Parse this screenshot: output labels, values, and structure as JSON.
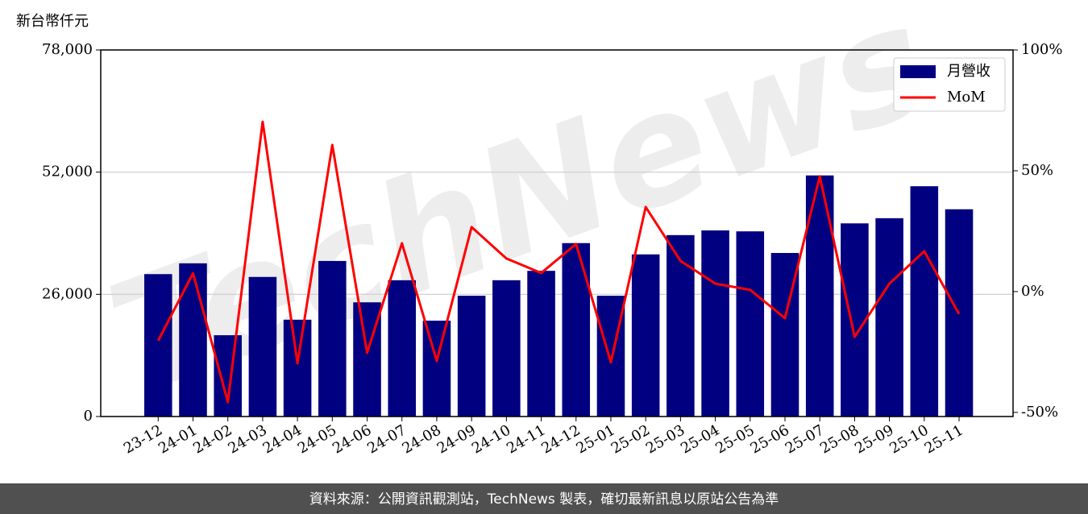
{
  "chart_data": {
    "type": "bar",
    "y_label": "新台幣仟元",
    "watermark": "TechNews",
    "categories": [
      "23-12",
      "24-01",
      "24-02",
      "24-03",
      "24-04",
      "24-05",
      "24-06",
      "24-07",
      "24-08",
      "24-09",
      "24-10",
      "24-11",
      "24-12",
      "25-01",
      "25-02",
      "25-03",
      "25-04",
      "25-05",
      "25-06",
      "25-07",
      "25-08",
      "25-09",
      "25-10",
      "25-11"
    ],
    "series": [
      {
        "name": "月營收",
        "type": "bar",
        "color": "#000080",
        "values": [
          30300,
          32600,
          17300,
          29700,
          20600,
          33100,
          24300,
          29000,
          20400,
          25700,
          29000,
          31000,
          36900,
          25700,
          34500,
          38600,
          39600,
          39400,
          34800,
          51300,
          41100,
          42200,
          49000,
          44100
        ]
      },
      {
        "name": "MoM",
        "type": "line",
        "axis": "y2",
        "color": "#ff0000",
        "values": [
          -20.3,
          7.6,
          -45.7,
          70.3,
          -29.7,
          60.7,
          -25.3,
          20,
          -28.7,
          26.7,
          13.7,
          7.7,
          19.7,
          -29.3,
          35,
          12.7,
          3.3,
          0.7,
          -11,
          47.7,
          -18.7,
          3.3,
          16.7,
          -9.3
        ]
      }
    ],
    "ylim": [
      0,
      78000
    ],
    "yticks": [
      0,
      {
        "value": 26000,
        "label": "26,000"
      },
      {
        "value": 52000,
        "label": "52,000"
      },
      {
        "value": 78000,
        "label": "78,000"
      }
    ],
    "y2lim": [
      -51.7,
      100
    ],
    "y2ticks": [
      {
        "value": -50,
        "label": "-50%"
      },
      {
        "value": 0,
        "label": "0%"
      },
      {
        "value": 50,
        "label": "50%"
      },
      {
        "value": 100,
        "label": "100%"
      }
    ],
    "grid": true,
    "legend": "upper right",
    "source": "資料來源：公開資訊觀測站，TechNews 製表，確切最新訊息以原站公告為準"
  }
}
